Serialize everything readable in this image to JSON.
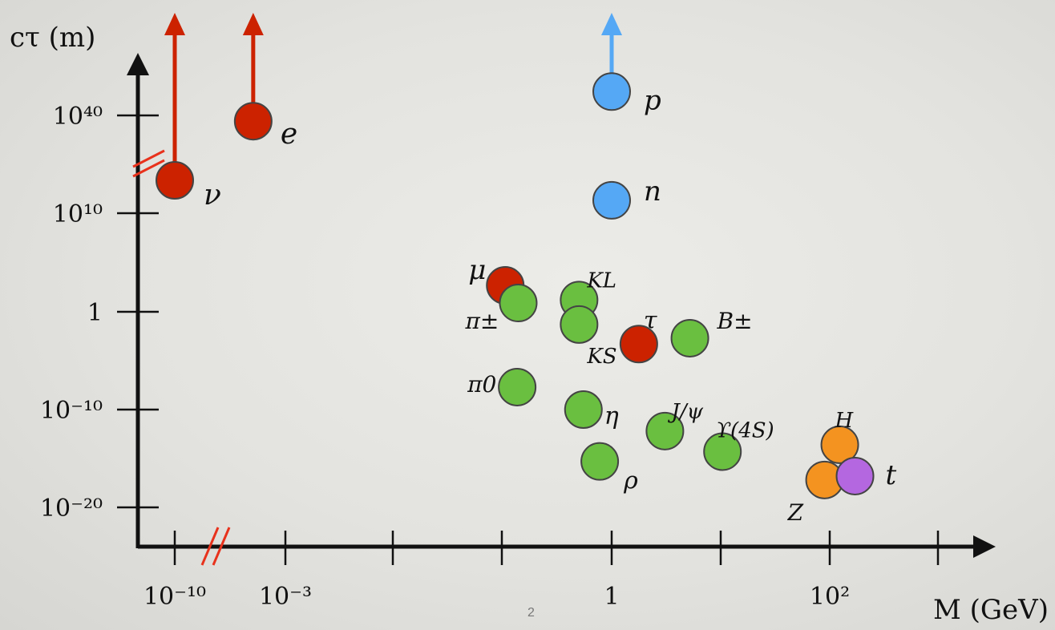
{
  "page_number": "2",
  "chart_data": {
    "type": "scatter",
    "title": "",
    "ylabel": "cτ (m)",
    "xlabel": "M (GeV)",
    "x_scale": "log10",
    "y_scale": "log10",
    "x_ticks": [
      "10⁻¹⁰",
      "10⁻³",
      "1",
      "10²"
    ],
    "y_ticks": [
      "10⁴⁰",
      "10¹⁰",
      "1",
      "10⁻¹⁰",
      "10⁻²⁰"
    ],
    "colors": {
      "lepton": "#cc2200",
      "nucleon": "#55a8f5",
      "meson": "#6abf40",
      "boson": "#f49320",
      "top": "#b467e0",
      "axis": "#111111",
      "break_marks": "#e8321c"
    },
    "points": [
      {
        "label": "ν",
        "group": "lepton",
        "log_m": -10,
        "log_ctau": 25,
        "lower_limit": true
      },
      {
        "label": "e",
        "group": "lepton",
        "log_m": -3.3,
        "log_ctau": 43,
        "lower_limit": true
      },
      {
        "label": "p",
        "group": "nucleon",
        "log_m": 0,
        "log_ctau": 52,
        "lower_limit": true
      },
      {
        "label": "n",
        "group": "nucleon",
        "log_m": 0,
        "log_ctau": 11.4
      },
      {
        "label": "μ",
        "group": "lepton",
        "log_m": -0.98,
        "log_ctau": 2.7
      },
      {
        "label": "π±",
        "group": "meson",
        "log_m": -0.86,
        "log_ctau": 0.9
      },
      {
        "label": "KL",
        "group": "meson",
        "log_m": -0.3,
        "log_ctau": 1.2
      },
      {
        "label": "KS",
        "group": "meson",
        "log_m": -0.3,
        "log_ctau": -1.3
      },
      {
        "label": "τ",
        "group": "lepton",
        "log_m": 0.25,
        "log_ctau": -3.3
      },
      {
        "label": "B±",
        "group": "meson",
        "log_m": 0.72,
        "log_ctau": -2.7
      },
      {
        "label": "π0",
        "group": "meson",
        "log_m": -0.87,
        "log_ctau": -7.7
      },
      {
        "label": "η",
        "group": "meson",
        "log_m": -0.26,
        "log_ctau": -10
      },
      {
        "label": "J/ψ",
        "group": "meson",
        "log_m": 0.49,
        "log_ctau": -12.2
      },
      {
        "label": "ρ",
        "group": "meson",
        "log_m": -0.11,
        "log_ctau": -15.3
      },
      {
        "label": "ϒ(4S)",
        "group": "meson",
        "log_m": 1.02,
        "log_ctau": -14.3
      },
      {
        "label": "H",
        "group": "boson",
        "log_m": 2.1,
        "log_ctau": -13.6
      },
      {
        "label": "Z",
        "group": "boson",
        "log_m": 1.96,
        "log_ctau": -17.2
      },
      {
        "label": "t",
        "group": "top",
        "log_m": 2.24,
        "log_ctau": -16.8
      }
    ]
  }
}
